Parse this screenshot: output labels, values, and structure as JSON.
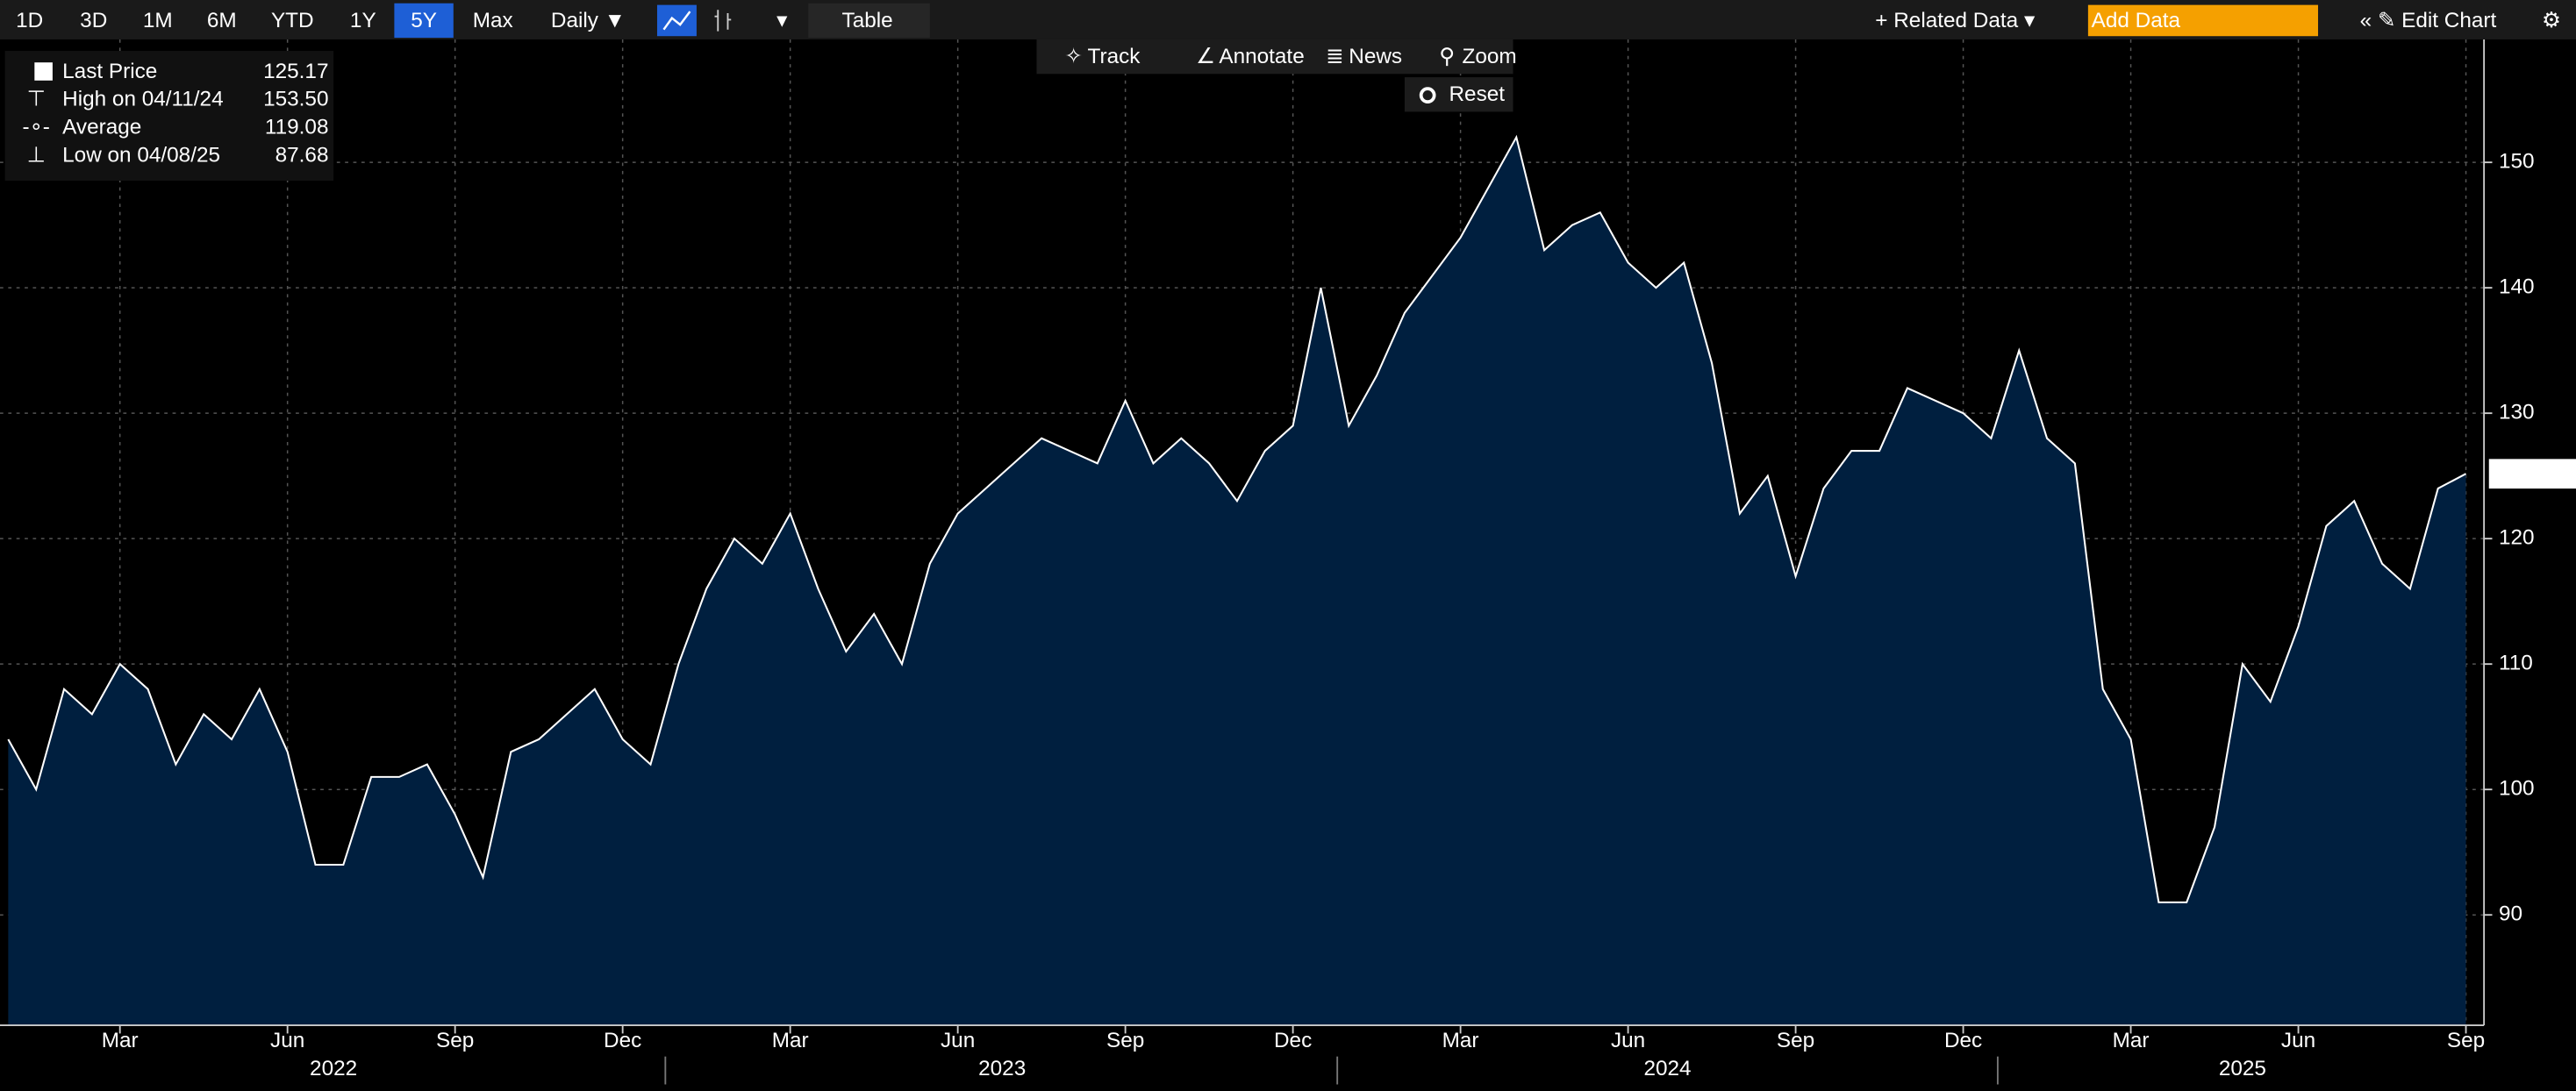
{
  "toolbar": {
    "ranges": [
      "1D",
      "3D",
      "1M",
      "6M",
      "YTD",
      "1Y",
      "5Y",
      "Max"
    ],
    "selected_range": "5Y",
    "frequency": "Daily ▼",
    "table": "Table",
    "related": "+ Related Data ▾",
    "add_data": "Add Data",
    "edit": "« ✎ Edit Chart"
  },
  "tools": [
    "Track",
    "Annotate",
    "News",
    "Zoom"
  ],
  "reset": "Reset",
  "chart_data": {
    "type": "area",
    "series": [
      {
        "name": "Last Price",
        "color": "#ffffff",
        "fill": "#001f3f",
        "values": [
          104,
          100,
          108,
          106,
          110,
          108,
          102,
          106,
          104,
          108,
          103,
          94,
          94,
          101,
          101,
          102,
          98,
          93,
          103,
          104,
          106,
          108,
          104,
          102,
          110,
          116,
          120,
          118,
          122,
          116,
          111,
          114,
          110,
          118,
          122,
          124,
          126,
          128,
          127,
          126,
          131,
          126,
          128,
          126,
          123,
          127,
          129,
          140,
          129,
          133,
          138,
          141,
          144,
          148,
          152,
          143,
          145,
          146,
          142,
          140,
          142,
          134,
          122,
          125,
          117,
          124,
          127,
          127,
          132,
          131,
          130,
          128,
          135,
          128,
          126,
          108,
          104,
          91,
          91,
          97,
          110,
          107,
          113,
          121,
          123,
          118,
          116,
          124,
          125.17
        ]
      }
    ],
    "categories": [
      null,
      null,
      null,
      null,
      "Mar",
      null,
      null,
      null,
      null,
      null,
      "Jun",
      null,
      null,
      null,
      null,
      null,
      "Sep",
      null,
      null,
      null,
      null,
      null,
      "Dec",
      null,
      null,
      null,
      null,
      null,
      "Mar",
      null,
      null,
      null,
      null,
      null,
      "Jun",
      null,
      null,
      null,
      null,
      null,
      "Sep",
      null,
      null,
      null,
      null,
      null,
      "Dec",
      null,
      null,
      null,
      null,
      null,
      "Mar",
      null,
      null,
      null,
      null,
      null,
      "Jun",
      null,
      null,
      null,
      null,
      null,
      "Sep",
      null,
      null,
      null,
      null,
      null,
      "Dec",
      null,
      null,
      null,
      null,
      null,
      "Mar",
      null,
      null,
      null,
      null,
      null,
      "Jun",
      null,
      null,
      null,
      null,
      null,
      "Sep"
    ],
    "years": [
      "2022",
      "2023",
      "2024",
      "2025"
    ],
    "stats": [
      {
        "label": "High on 04/11/24",
        "value": "153.50"
      },
      {
        "label": "Average",
        "value": "119.08"
      },
      {
        "label": "Low on 04/08/25",
        "value": "87.68"
      }
    ],
    "ylim": [
      81.2,
      159.8
    ],
    "yticks": [
      90,
      100,
      110,
      120,
      130,
      140,
      150
    ],
    "grid": true
  }
}
